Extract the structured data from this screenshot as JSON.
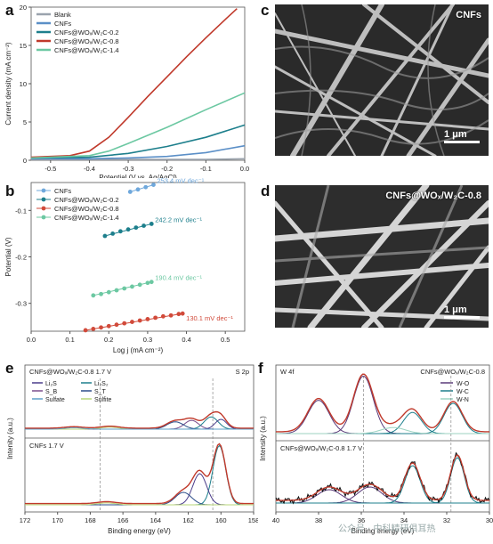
{
  "panels": {
    "a": {
      "label": "a",
      "chart_data": {
        "type": "line",
        "xlabel": "Potential (V vs. Ag/AgCl)",
        "ylabel": "Current density (mA cm⁻²)",
        "xlim": [
          -0.55,
          0.0
        ],
        "ylim": [
          0,
          20
        ],
        "xticks": [
          "-0.5",
          "-0.4",
          "-0.3",
          "-0.2",
          "-0.1",
          "0.0"
        ],
        "yticks": [
          "0",
          "5",
          "10",
          "15",
          "20"
        ],
        "legend_position": "top-left",
        "series": [
          {
            "name": "Blank",
            "color": "#9aa3ad",
            "x": [
              -0.55,
              -0.4,
              -0.3,
              -0.2,
              -0.1,
              0.0
            ],
            "y": [
              0.1,
              0.1,
              0.1,
              0.1,
              0.1,
              0.2
            ]
          },
          {
            "name": "CNFs",
            "color": "#5b8fc7",
            "x": [
              -0.55,
              -0.4,
              -0.3,
              -0.2,
              -0.1,
              0.0
            ],
            "y": [
              0.2,
              0.2,
              0.3,
              0.5,
              1.0,
              1.9
            ]
          },
          {
            "name": "CNFs@WOₓ/W₂C-0.2",
            "color": "#1d7f8c",
            "x": [
              -0.55,
              -0.4,
              -0.3,
              -0.2,
              -0.1,
              0.0
            ],
            "y": [
              0.3,
              0.4,
              0.9,
              1.8,
              3.0,
              4.6
            ]
          },
          {
            "name": "CNFs@WOₓ/W₂C-0.8",
            "color": "#c0392b",
            "x": [
              -0.55,
              -0.45,
              -0.4,
              -0.35,
              -0.3,
              -0.25,
              -0.2,
              -0.15,
              -0.1,
              -0.05,
              -0.02
            ],
            "y": [
              0.4,
              0.6,
              1.2,
              3.0,
              5.6,
              8.3,
              10.9,
              13.5,
              16.0,
              18.4,
              19.8
            ]
          },
          {
            "name": "CNFs@WOₓ/W₂C-1.4",
            "color": "#6cc8a2",
            "x": [
              -0.55,
              -0.4,
              -0.35,
              -0.3,
              -0.2,
              -0.1,
              0.0
            ],
            "y": [
              0.3,
              0.6,
              1.2,
              2.2,
              4.3,
              6.6,
              8.8
            ]
          }
        ]
      }
    },
    "b": {
      "label": "b",
      "chart_data": {
        "type": "scatter",
        "xlabel": "Log j (mA cm⁻²)",
        "ylabel": "Potential (V)",
        "xlim": [
          0.0,
          0.55
        ],
        "ylim": [
          -0.36,
          -0.04
        ],
        "xticks": [
          "0.0",
          "0.1",
          "0.2",
          "0.3",
          "0.4",
          "0.5"
        ],
        "yticks": [
          "-0.1",
          "-0.2",
          "-0.3"
        ],
        "legend_position": "top-left",
        "series": [
          {
            "name": "CNFs",
            "color": "#6fa8dc",
            "x": [
              0.255,
              0.275,
              0.295,
              0.315
            ],
            "y": [
              -0.06,
              -0.055,
              -0.05,
              -0.045
            ],
            "slope_label": "253.4 mV dec⁻¹"
          },
          {
            "name": "CNFs@WOₓ/W₂C-0.2",
            "color": "#1d7f8c",
            "x": [
              0.19,
              0.21,
              0.23,
              0.25,
              0.27,
              0.29,
              0.31
            ],
            "y": [
              -0.155,
              -0.15,
              -0.145,
              -0.141,
              -0.137,
              -0.133,
              -0.129
            ],
            "slope_label": "242.2 mV dec⁻¹"
          },
          {
            "name": "CNFs@WOₓ/W₂C-0.8",
            "color": "#d14a3a",
            "x": [
              0.14,
              0.16,
              0.18,
              0.2,
              0.22,
              0.24,
              0.26,
              0.28,
              0.3,
              0.32,
              0.34,
              0.36,
              0.38,
              0.39
            ],
            "y": [
              -0.358,
              -0.355,
              -0.352,
              -0.349,
              -0.346,
              -0.343,
              -0.34,
              -0.337,
              -0.334,
              -0.331,
              -0.328,
              -0.326,
              -0.323,
              -0.322
            ],
            "slope_label": "130.1 mV dec⁻¹"
          },
          {
            "name": "CNFs@WOₓ/W₂C-1.4",
            "color": "#6cc8a2",
            "x": [
              0.16,
              0.18,
              0.2,
              0.22,
              0.24,
              0.26,
              0.28,
              0.3,
              0.31
            ],
            "y": [
              -0.283,
              -0.28,
              -0.276,
              -0.272,
              -0.268,
              -0.264,
              -0.26,
              -0.256,
              -0.254
            ],
            "slope_label": "190.4 mV dec⁻¹"
          }
        ]
      }
    },
    "c": {
      "label": "c",
      "tag": "CNFs",
      "scale": "1 μm"
    },
    "d": {
      "label": "d",
      "tag": "CNFs@WOₓ/W₂C-0.8",
      "scale": "1 μm"
    },
    "e": {
      "label": "e",
      "chart_data": {
        "type": "line",
        "xlabel": "Binding energy (eV)",
        "ylabel": "Intenity (a.u.)",
        "xlim": [
          172,
          158
        ],
        "xticks": [
          "172",
          "170",
          "168",
          "166",
          "164",
          "162",
          "160",
          "158"
        ],
        "top_title": "CNFs@WOₓ/W₂C-0.8 1.7 V",
        "bottom_title": "CNFs 1.7 V",
        "corner_label": "S 2p",
        "legend": [
          {
            "name": "Li₂S",
            "color": "#4b3c8a"
          },
          {
            "name": "Li₂S₂",
            "color": "#1d7f8c"
          },
          {
            "name": "S_B",
            "color": "#7a4f8e"
          },
          {
            "name": "S_T",
            "color": "#2d4e8a"
          },
          {
            "name": "Sulfate",
            "color": "#5ea0c8"
          },
          {
            "name": "Sulfite",
            "color": "#b9d77a"
          }
        ]
      }
    },
    "f": {
      "label": "f",
      "chart_data": {
        "type": "line",
        "xlabel": "Binding energy (eV)",
        "ylabel": "Intensity (a.u.)",
        "xlim": [
          40,
          30
        ],
        "xticks": [
          "40",
          "38",
          "36",
          "34",
          "32",
          "30"
        ],
        "top_title": "CNFs@WOₓ/W₂C-0.8",
        "bottom_title": "CNFs@WOₓ/W₂C-0.8 1.7 V",
        "corner_label": "W 4f",
        "legend": [
          {
            "name": "W-O",
            "color": "#5a3a7a"
          },
          {
            "name": "W-C",
            "color": "#1d7f8c"
          },
          {
            "name": "W-N",
            "color": "#9cd3c2"
          }
        ]
      }
    }
  },
  "watermark": "公众号 · 中科精研俱耳热"
}
